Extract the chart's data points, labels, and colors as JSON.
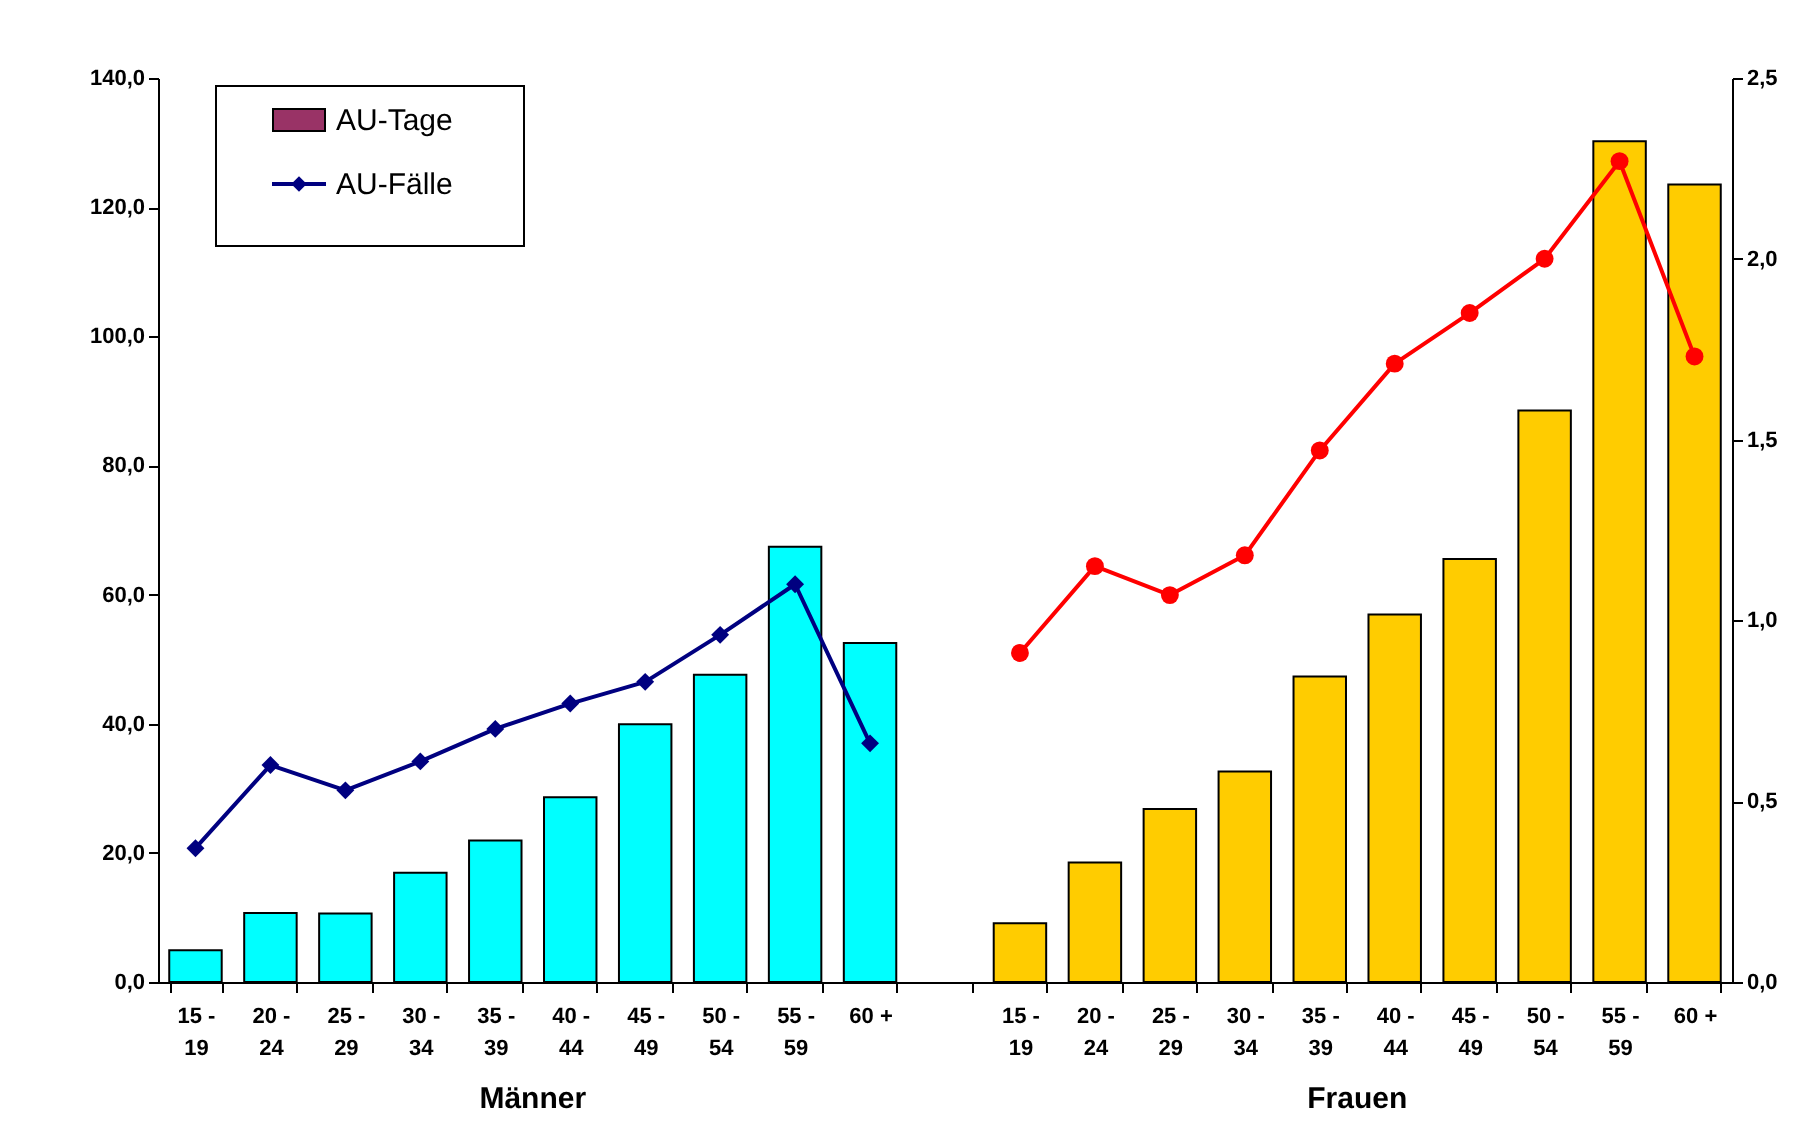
{
  "chart_data": {
    "type": "bar",
    "categories": [
      "15 - 19",
      "20 - 24",
      "25 - 29",
      "30 - 34",
      "35 - 39",
      "40 - 44",
      "45 - 49",
      "50 - 54",
      "55 - 59",
      "60 +",
      null,
      "15 - 19",
      "20 - 24",
      "25 - 29",
      "30 - 34",
      "35 - 39",
      "40 - 44",
      "45 - 49",
      "50 - 54",
      "55 - 59",
      "60 +"
    ],
    "series": [
      {
        "name": "AU-Tage",
        "color": "#993366",
        "colors": [
          "#00ffff",
          "#00ffff",
          "#00ffff",
          "#00ffff",
          "#00ffff",
          "#00ffff",
          "#00ffff",
          "#00ffff",
          "#00ffff",
          "#00ffff",
          null,
          "#ffcc00",
          "#ffcc00",
          "#ffcc00",
          "#ffcc00",
          "#ffcc00",
          "#ffcc00",
          "#ffcc00",
          "#ffcc00",
          "#ffcc00",
          "#ffcc00"
        ],
        "values": [
          4.9,
          10.7,
          10.6,
          16.9,
          21.9,
          28.6,
          39.9,
          47.6,
          67.4,
          52.5,
          null,
          9.1,
          18.5,
          26.8,
          32.6,
          47.3,
          56.9,
          65.5,
          88.5,
          130.2,
          123.5
        ]
      },
      {
        "name": "AU-Fälle",
        "type": "line",
        "axis": "y2",
        "color": "#000080",
        "marker": "diamond",
        "values": [
          0.37,
          0.6,
          0.53,
          0.61,
          0.7,
          0.77,
          0.83,
          0.96,
          1.1,
          0.66,
          null,
          null,
          null,
          null,
          null,
          null,
          null,
          null,
          null,
          null,
          null
        ]
      },
      {
        "type": "line",
        "axis": "y2",
        "color": "#ff0000",
        "marker": "circle",
        "values": [
          null,
          null,
          null,
          null,
          null,
          null,
          null,
          null,
          null,
          null,
          null,
          0.91,
          1.15,
          1.07,
          1.18,
          1.47,
          1.71,
          1.85,
          2.0,
          2.27,
          1.73
        ]
      }
    ],
    "ylim": [
      0,
      140
    ],
    "yticks": [
      {
        "value": 0,
        "label": "0,0"
      },
      {
        "value": 20,
        "label": "20,0"
      },
      {
        "value": 40,
        "label": "40,0"
      },
      {
        "value": 60,
        "label": "60,0"
      },
      {
        "value": 80,
        "label": "80,0"
      },
      {
        "value": 100,
        "label": "100,0"
      },
      {
        "value": 120,
        "label": "120,0"
      },
      {
        "value": 140,
        "label": "140,0"
      }
    ],
    "y2lim": [
      0,
      2.5
    ],
    "y2ticks": [
      {
        "value": 0,
        "label": "0,0"
      },
      {
        "value": 0.5,
        "label": "0,5"
      },
      {
        "value": 1,
        "label": "1,0"
      },
      {
        "value": 1.5,
        "label": "1,5"
      },
      {
        "value": 2,
        "label": "2,0"
      },
      {
        "value": 2.5,
        "label": "2,5"
      }
    ],
    "legend": "top left",
    "annotations": [
      "Männer",
      "Frauen"
    ]
  }
}
